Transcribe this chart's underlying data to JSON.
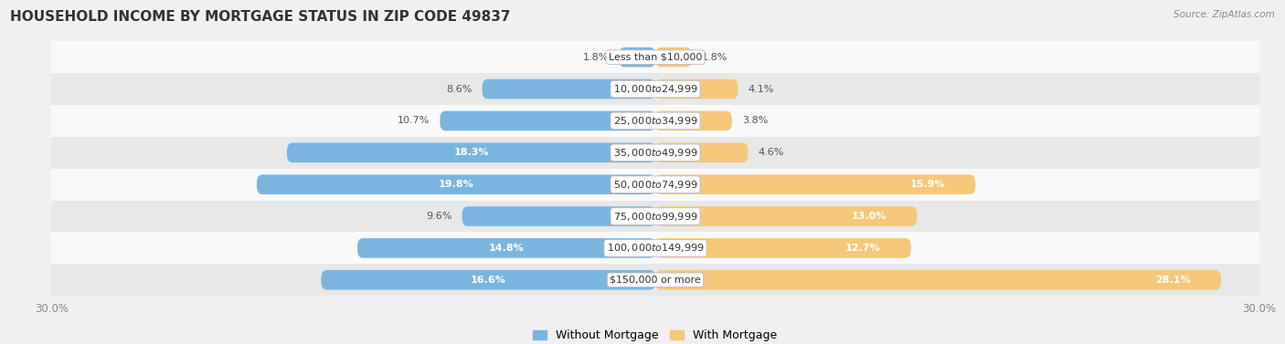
{
  "title": "HOUSEHOLD INCOME BY MORTGAGE STATUS IN ZIP CODE 49837",
  "source": "Source: ZipAtlas.com",
  "categories": [
    "Less than $10,000",
    "$10,000 to $24,999",
    "$25,000 to $34,999",
    "$35,000 to $49,999",
    "$50,000 to $74,999",
    "$75,000 to $99,999",
    "$100,000 to $149,999",
    "$150,000 or more"
  ],
  "without_mortgage": [
    1.8,
    8.6,
    10.7,
    18.3,
    19.8,
    9.6,
    14.8,
    16.6
  ],
  "with_mortgage": [
    1.8,
    4.1,
    3.8,
    4.6,
    15.9,
    13.0,
    12.7,
    28.1
  ],
  "color_without": "#7ab5e0",
  "color_with": "#f5c87a",
  "xlim": 30.0,
  "bg_outer": "#f0f0f0",
  "row_bg_colors": [
    "#f9f9f9",
    "#e8e8e8"
  ],
  "title_fontsize": 11,
  "label_fontsize": 8,
  "cat_fontsize": 8,
  "legend_fontsize": 9,
  "axis_label_fontsize": 8.5,
  "inside_threshold_without": 14.0,
  "inside_threshold_with": 12.0
}
